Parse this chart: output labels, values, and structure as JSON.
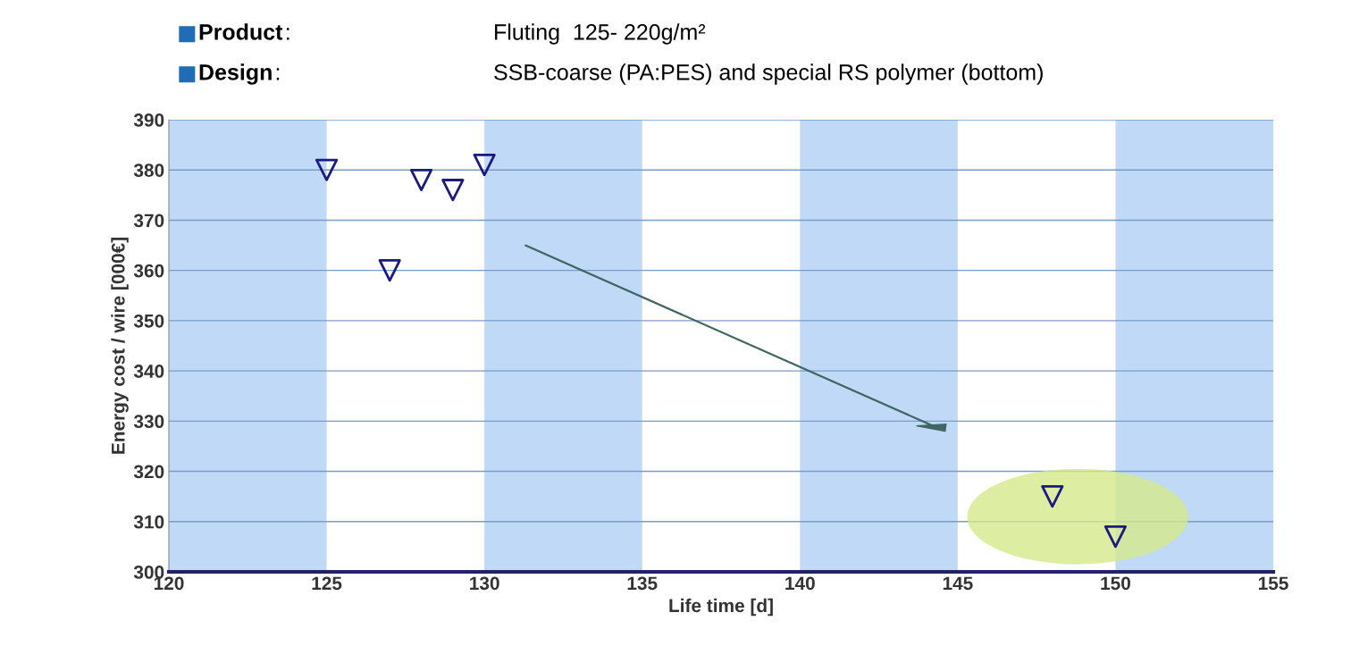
{
  "chart_data": {
    "type": "scatter",
    "annotations": [
      "Product: Fluting  125- 220g/m²",
      "Design: SSB-coarse (PA:PES) and special RS polymer (bottom)"
    ],
    "xlabel": "Life time [d]",
    "ylabel": "Energy cost / wire [000€]",
    "x": [
      125,
      127,
      128,
      129,
      130,
      148,
      150
    ],
    "series": [
      {
        "color": "#1a1a80",
        "values": [
          380,
          360,
          378,
          376,
          381,
          315,
          307
        ]
      }
    ],
    "marker": "triangle",
    "xlim": [
      120,
      155
    ],
    "xticks": [
      120,
      125,
      130,
      135,
      140,
      145,
      150,
      155
    ],
    "ylim": [
      300,
      390
    ],
    "yticks": [
      300,
      310,
      320,
      330,
      340,
      350,
      360,
      370,
      380,
      390
    ],
    "grid": "y",
    "bands": [
      {
        "axis": "x",
        "from": 120,
        "to": 125,
        "color": "#c0d9f7"
      },
      {
        "axis": "x",
        "from": 130,
        "to": 135,
        "color": "#c0d9f7"
      },
      {
        "axis": "x",
        "from": 140,
        "to": 145,
        "color": "#c0d9f7"
      },
      {
        "axis": "x",
        "from": 150,
        "to": 155,
        "color": "#c0d9f7"
      }
    ]
  }
}
